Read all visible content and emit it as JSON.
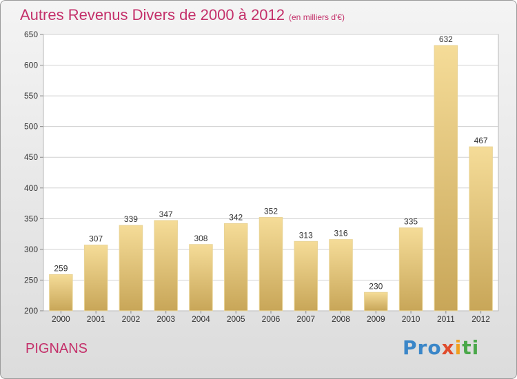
{
  "header": {
    "title": "Autres Revenus Divers de 2000 à 2012",
    "subtitle": "(en milliers d'€)"
  },
  "footer": {
    "commune": "PIGNANS",
    "logo": [
      "Pro",
      "x",
      "i",
      "ti"
    ]
  },
  "colors": {
    "title": "#c4306a",
    "bar_light": "#f5dc98",
    "bar_dark": "#c8a658",
    "grid": "#d0d0d0"
  },
  "chart_data": {
    "type": "bar",
    "title": "Autres Revenus Divers de 2000 à 2012",
    "categories": [
      "2000",
      "2001",
      "2002",
      "2003",
      "2004",
      "2005",
      "2006",
      "2007",
      "2008",
      "2009",
      "2010",
      "2011",
      "2012"
    ],
    "values": [
      259,
      307,
      339,
      347,
      308,
      342,
      352,
      313,
      316,
      230,
      335,
      632,
      467
    ],
    "yticks": [
      200,
      250,
      300,
      350,
      400,
      450,
      500,
      550,
      600,
      650
    ],
    "ylim": [
      200,
      650
    ],
    "grid": true,
    "legend": "none"
  }
}
